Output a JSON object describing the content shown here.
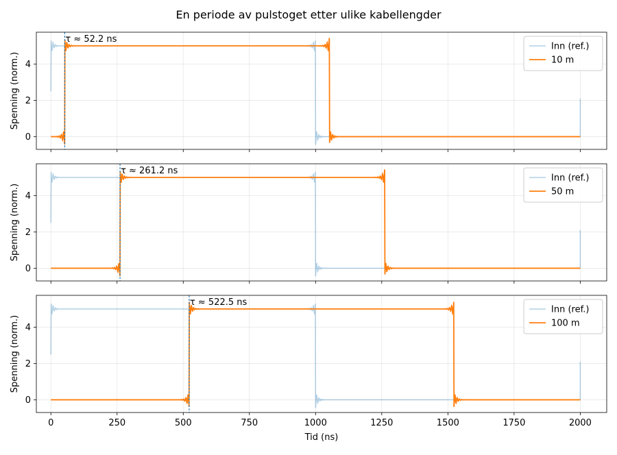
{
  "figure": {
    "title": "En periode av pulstoget etter ulike kabellengder"
  },
  "chart_data": [
    {
      "type": "line",
      "xlabel": "",
      "ylabel": "Spenning (norm.)",
      "xlim": [
        -55,
        2100
      ],
      "ylim": [
        -0.7,
        5.75
      ],
      "xticks": [
        0,
        250,
        500,
        750,
        1000,
        1250,
        1500,
        1750,
        2000
      ],
      "xtick_labels": [],
      "yticks": [
        0,
        2,
        4
      ],
      "ytick_labels": [
        "0",
        "2",
        "4"
      ],
      "grid": true,
      "legend": "top-right",
      "period_ns": 2000,
      "high_level": 5.0,
      "low_level": 0.0,
      "reference": {
        "name": "Inn (ref.)",
        "color": "#1f77b4",
        "opacity": 0.35,
        "rise_ns": 0,
        "fall_ns": 1000
      },
      "series": [
        {
          "name": "10 m",
          "color": "#ff7f0e",
          "delay_ns": 52.2,
          "rise_ns": 52.2,
          "fall_ns": 1052.2
        }
      ],
      "annotation": {
        "text": "τ ≈ 52.2 ns",
        "x_ns": 52.2
      }
    },
    {
      "type": "line",
      "xlabel": "",
      "ylabel": "Spenning (norm.)",
      "xlim": [
        -55,
        2100
      ],
      "ylim": [
        -0.7,
        5.75
      ],
      "xticks": [
        0,
        250,
        500,
        750,
        1000,
        1250,
        1500,
        1750,
        2000
      ],
      "xtick_labels": [],
      "yticks": [
        0,
        2,
        4
      ],
      "ytick_labels": [
        "0",
        "2",
        "4"
      ],
      "grid": true,
      "legend": "top-right",
      "period_ns": 2000,
      "high_level": 5.0,
      "low_level": 0.0,
      "reference": {
        "name": "Inn (ref.)",
        "color": "#1f77b4",
        "opacity": 0.35,
        "rise_ns": 0,
        "fall_ns": 1000
      },
      "series": [
        {
          "name": "50 m",
          "color": "#ff7f0e",
          "delay_ns": 261.2,
          "rise_ns": 261.2,
          "fall_ns": 1261.2
        }
      ],
      "annotation": {
        "text": "τ ≈ 261.2 ns",
        "x_ns": 261.2
      }
    },
    {
      "type": "line",
      "xlabel": "Tid (ns)",
      "ylabel": "Spenning (norm.)",
      "xlim": [
        -55,
        2100
      ],
      "ylim": [
        -0.7,
        5.75
      ],
      "xticks": [
        0,
        250,
        500,
        750,
        1000,
        1250,
        1500,
        1750,
        2000
      ],
      "xtick_labels": [
        "0",
        "250",
        "500",
        "750",
        "1000",
        "1250",
        "1500",
        "1750",
        "2000"
      ],
      "yticks": [
        0,
        2,
        4
      ],
      "ytick_labels": [
        "0",
        "2",
        "4"
      ],
      "grid": true,
      "legend": "top-right",
      "period_ns": 2000,
      "high_level": 5.0,
      "low_level": 0.0,
      "reference": {
        "name": "Inn (ref.)",
        "color": "#1f77b4",
        "opacity": 0.35,
        "rise_ns": 0,
        "fall_ns": 1000
      },
      "series": [
        {
          "name": "100 m",
          "color": "#ff7f0e",
          "delay_ns": 522.5,
          "rise_ns": 522.5,
          "fall_ns": 1522.5
        }
      ],
      "annotation": {
        "text": "τ ≈ 522.5 ns",
        "x_ns": 522.5
      }
    }
  ]
}
